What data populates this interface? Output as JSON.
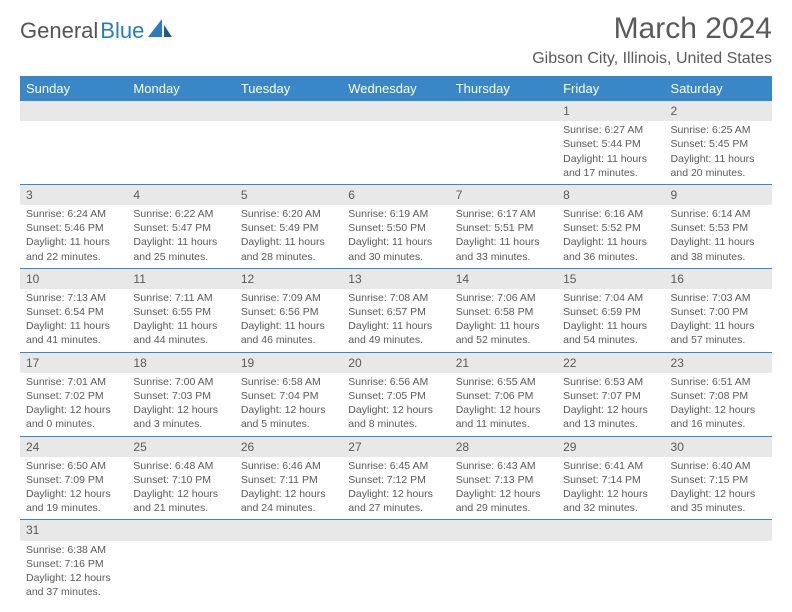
{
  "logo": {
    "part1": "General",
    "part2": "Blue"
  },
  "title": "March 2024",
  "location": "Gibson City, Illinois, United States",
  "colors": {
    "header_bg": "#3a87c8",
    "header_text": "#ffffff",
    "daynum_bg": "#e8e8e8",
    "text": "#5a5a5a",
    "row_border": "#3a87c8",
    "logo_accent": "#2b7bbf"
  },
  "weekdays": [
    "Sunday",
    "Monday",
    "Tuesday",
    "Wednesday",
    "Thursday",
    "Friday",
    "Saturday"
  ],
  "first_weekday": 5,
  "days": [
    {
      "n": 1,
      "sr": "6:27 AM",
      "ss": "5:44 PM",
      "dl": "11 hours and 17 minutes."
    },
    {
      "n": 2,
      "sr": "6:25 AM",
      "ss": "5:45 PM",
      "dl": "11 hours and 20 minutes."
    },
    {
      "n": 3,
      "sr": "6:24 AM",
      "ss": "5:46 PM",
      "dl": "11 hours and 22 minutes."
    },
    {
      "n": 4,
      "sr": "6:22 AM",
      "ss": "5:47 PM",
      "dl": "11 hours and 25 minutes."
    },
    {
      "n": 5,
      "sr": "6:20 AM",
      "ss": "5:49 PM",
      "dl": "11 hours and 28 minutes."
    },
    {
      "n": 6,
      "sr": "6:19 AM",
      "ss": "5:50 PM",
      "dl": "11 hours and 30 minutes."
    },
    {
      "n": 7,
      "sr": "6:17 AM",
      "ss": "5:51 PM",
      "dl": "11 hours and 33 minutes."
    },
    {
      "n": 8,
      "sr": "6:16 AM",
      "ss": "5:52 PM",
      "dl": "11 hours and 36 minutes."
    },
    {
      "n": 9,
      "sr": "6:14 AM",
      "ss": "5:53 PM",
      "dl": "11 hours and 38 minutes."
    },
    {
      "n": 10,
      "sr": "7:13 AM",
      "ss": "6:54 PM",
      "dl": "11 hours and 41 minutes."
    },
    {
      "n": 11,
      "sr": "7:11 AM",
      "ss": "6:55 PM",
      "dl": "11 hours and 44 minutes."
    },
    {
      "n": 12,
      "sr": "7:09 AM",
      "ss": "6:56 PM",
      "dl": "11 hours and 46 minutes."
    },
    {
      "n": 13,
      "sr": "7:08 AM",
      "ss": "6:57 PM",
      "dl": "11 hours and 49 minutes."
    },
    {
      "n": 14,
      "sr": "7:06 AM",
      "ss": "6:58 PM",
      "dl": "11 hours and 52 minutes."
    },
    {
      "n": 15,
      "sr": "7:04 AM",
      "ss": "6:59 PM",
      "dl": "11 hours and 54 minutes."
    },
    {
      "n": 16,
      "sr": "7:03 AM",
      "ss": "7:00 PM",
      "dl": "11 hours and 57 minutes."
    },
    {
      "n": 17,
      "sr": "7:01 AM",
      "ss": "7:02 PM",
      "dl": "12 hours and 0 minutes."
    },
    {
      "n": 18,
      "sr": "7:00 AM",
      "ss": "7:03 PM",
      "dl": "12 hours and 3 minutes."
    },
    {
      "n": 19,
      "sr": "6:58 AM",
      "ss": "7:04 PM",
      "dl": "12 hours and 5 minutes."
    },
    {
      "n": 20,
      "sr": "6:56 AM",
      "ss": "7:05 PM",
      "dl": "12 hours and 8 minutes."
    },
    {
      "n": 21,
      "sr": "6:55 AM",
      "ss": "7:06 PM",
      "dl": "12 hours and 11 minutes."
    },
    {
      "n": 22,
      "sr": "6:53 AM",
      "ss": "7:07 PM",
      "dl": "12 hours and 13 minutes."
    },
    {
      "n": 23,
      "sr": "6:51 AM",
      "ss": "7:08 PM",
      "dl": "12 hours and 16 minutes."
    },
    {
      "n": 24,
      "sr": "6:50 AM",
      "ss": "7:09 PM",
      "dl": "12 hours and 19 minutes."
    },
    {
      "n": 25,
      "sr": "6:48 AM",
      "ss": "7:10 PM",
      "dl": "12 hours and 21 minutes."
    },
    {
      "n": 26,
      "sr": "6:46 AM",
      "ss": "7:11 PM",
      "dl": "12 hours and 24 minutes."
    },
    {
      "n": 27,
      "sr": "6:45 AM",
      "ss": "7:12 PM",
      "dl": "12 hours and 27 minutes."
    },
    {
      "n": 28,
      "sr": "6:43 AM",
      "ss": "7:13 PM",
      "dl": "12 hours and 29 minutes."
    },
    {
      "n": 29,
      "sr": "6:41 AM",
      "ss": "7:14 PM",
      "dl": "12 hours and 32 minutes."
    },
    {
      "n": 30,
      "sr": "6:40 AM",
      "ss": "7:15 PM",
      "dl": "12 hours and 35 minutes."
    },
    {
      "n": 31,
      "sr": "6:38 AM",
      "ss": "7:16 PM",
      "dl": "12 hours and 37 minutes."
    }
  ],
  "labels": {
    "sunrise": "Sunrise:",
    "sunset": "Sunset:",
    "daylight": "Daylight:"
  }
}
